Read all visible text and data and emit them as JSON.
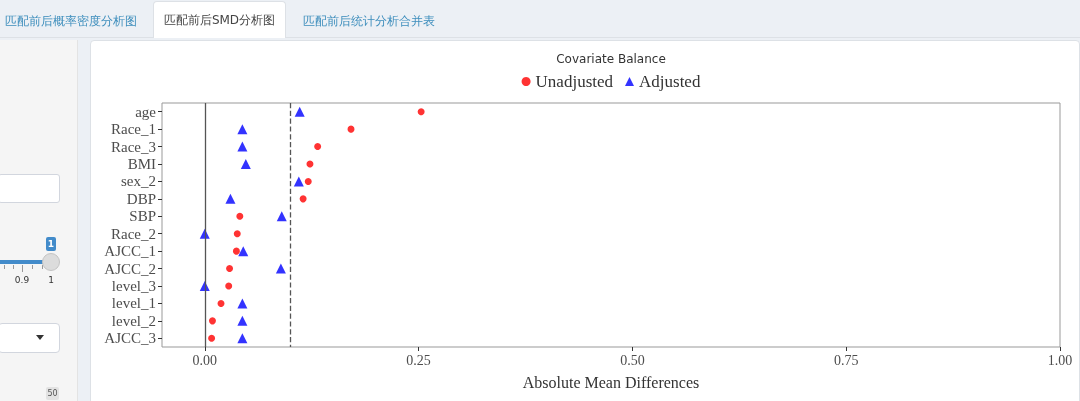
{
  "chart_data": {
    "type": "scatter",
    "title": "Covariate Balance",
    "xlabel": "Absolute Mean Differences",
    "orientation": "horizontal",
    "categories": [
      "age",
      "Race_1",
      "Race_3",
      "BMI",
      "sex_2",
      "DBP",
      "SBP",
      "Race_2",
      "AJCC_1",
      "AJCC_2",
      "level_3",
      "level_1",
      "level_2",
      "AJCC_3"
    ],
    "series": [
      {
        "name": "Unadjusted",
        "color": "#ff0000",
        "marker": "circle",
        "values": [
          0.253,
          0.171,
          0.132,
          0.123,
          0.121,
          0.115,
          0.041,
          0.038,
          0.037,
          0.029,
          0.028,
          0.019,
          0.009,
          0.008
        ]
      },
      {
        "name": "Adjusted",
        "color": "#0000ff",
        "marker": "triangle",
        "values": [
          0.111,
          0.044,
          0.044,
          0.048,
          0.11,
          0.03,
          0.09,
          0.0,
          0.045,
          0.089,
          0.0,
          0.044,
          0.044,
          0.044
        ]
      }
    ],
    "xlim": [
      -0.05,
      1.0
    ],
    "xticks": [
      {
        "value": 0,
        "label": "0.00"
      },
      {
        "value": 0.25,
        "label": "0.25"
      },
      {
        "value": 0.5,
        "label": "0.50"
      },
      {
        "value": 0.75,
        "label": "0.75"
      },
      {
        "value": 1,
        "label": "1.00"
      }
    ],
    "ref_lines": [
      {
        "axis": "x",
        "value": 0,
        "color": "#555555",
        "line_style": "solid"
      },
      {
        "axis": "x",
        "value": 0.1,
        "color": "#555555",
        "line_style": "dashed"
      }
    ],
    "legend": "top",
    "annotations": [
      "匹配前后概率密度分析图",
      "匹配前后SMD分析图",
      "匹配前后统计分析合并表",
      "1",
      "0.9",
      "1",
      "50"
    ]
  }
}
